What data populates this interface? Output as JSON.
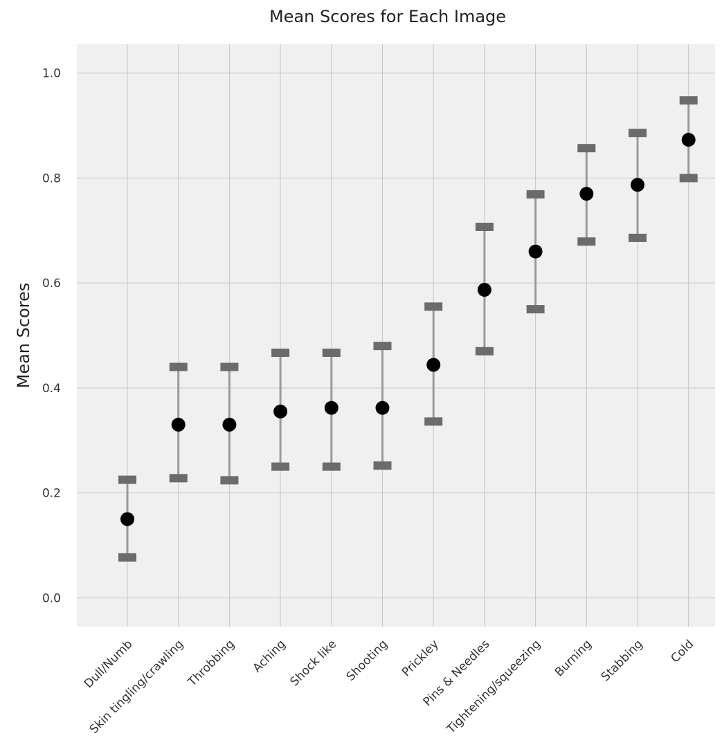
{
  "chart_data": {
    "type": "scatter",
    "title": "Mean Scores for Each Image",
    "xlabel": "",
    "ylabel": "Mean Scores",
    "ylim": [
      -0.055,
      1.055
    ],
    "yticks": [
      0.0,
      0.2,
      0.4,
      0.6,
      0.8,
      1.0
    ],
    "ytick_labels": [
      "0.0",
      "0.2",
      "0.4",
      "0.6",
      "0.8",
      "1.0"
    ],
    "grid": true,
    "categories": [
      "Dull/Numb",
      "Skin tingling/crawling",
      "Throbbing",
      "Aching",
      "Shock like",
      "Shooting",
      "Prickley",
      "Pins & Needles",
      "Tightening/squeezing",
      "Burning",
      "Stabbing",
      "Cold"
    ],
    "values": [
      0.15,
      0.33,
      0.33,
      0.355,
      0.362,
      0.362,
      0.444,
      0.587,
      0.66,
      0.77,
      0.787,
      0.873
    ],
    "lower": [
      0.077,
      0.228,
      0.224,
      0.25,
      0.25,
      0.252,
      0.336,
      0.47,
      0.55,
      0.679,
      0.686,
      0.8
    ],
    "upper": [
      0.225,
      0.44,
      0.44,
      0.467,
      0.467,
      0.48,
      0.555,
      0.707,
      0.769,
      0.857,
      0.886,
      0.948
    ],
    "colors": {
      "panel_bg": "#f0f0f0",
      "grid": "#c6c6c6",
      "errorbar": "#9a9a9a",
      "cap": "#6b6b6b",
      "point": "#000000"
    }
  }
}
